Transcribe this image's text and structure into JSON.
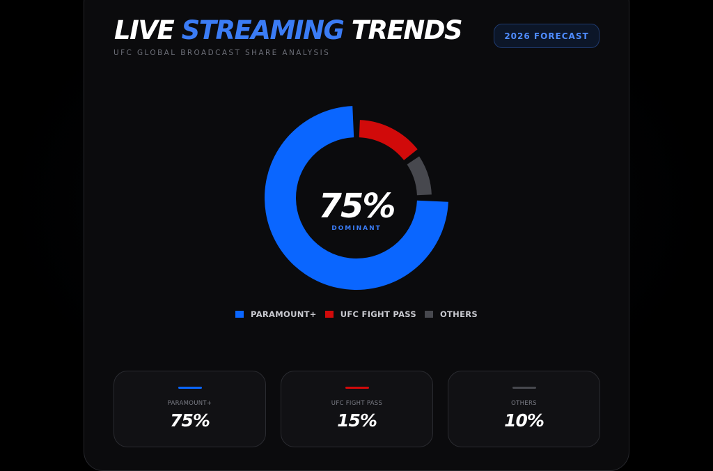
{
  "header": {
    "title_part1": "LIVE",
    "title_accent": "STREAMING",
    "title_part2": "TRENDS",
    "subtitle": "UFC GLOBAL BROADCAST SHARE ANALYSIS",
    "forecast_button": "2026 FORECAST"
  },
  "center": {
    "value": "75%",
    "label": "DOMINANT"
  },
  "colors": {
    "paramount": "#0a66ff",
    "fight_pass": "#d10a0a",
    "others": "#47484e",
    "accent": "#3b7cf5"
  },
  "chart_data": {
    "type": "pie",
    "donut": true,
    "categories": [
      "PARAMOUNT+",
      "UFC FIGHT PASS",
      "OTHERS"
    ],
    "values": [
      75,
      15,
      10
    ],
    "colors": [
      "#0a66ff",
      "#d10a0a",
      "#47484e"
    ],
    "legend_position": "bottom"
  },
  "stats": [
    {
      "label": "PARAMOUNT+",
      "value": "75%",
      "color": "#0a66ff"
    },
    {
      "label": "UFC FIGHT PASS",
      "value": "15%",
      "color": "#d10a0a"
    },
    {
      "label": "OTHERS",
      "value": "10%",
      "color": "#47484e"
    }
  ]
}
